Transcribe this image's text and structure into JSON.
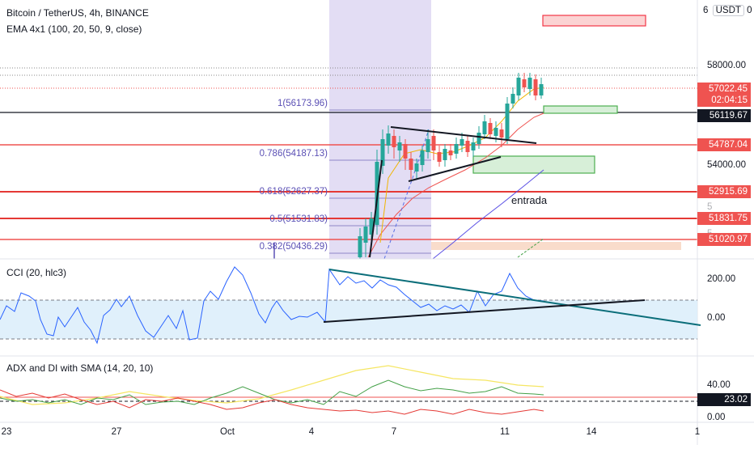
{
  "symbol_line": "Bitcoin / TetherUS, 4h, BINANCE",
  "ema_label": "EMA 4x1 (100, 20, 50, 9, close)",
  "cci_label": "CCI (20, hlc3)",
  "adx_label": "ADX and DI with SMA (14, 20, 10)",
  "currency_button": "USDT",
  "currency_prefix": "6",
  "currency_suffix": "0",
  "annotation": "entrada",
  "price_axis": {
    "ticks": [
      "58000.00",
      "54000.00"
    ],
    "partial_ticks": [
      "5",
      "5"
    ],
    "tags": [
      {
        "value": "57022.45",
        "sub": "02:04:15",
        "color": "#ef5350"
      },
      {
        "value": "56119.67",
        "color": "#131722"
      },
      {
        "value": "54787.04",
        "color": "#ef5350"
      },
      {
        "value": "52915.69",
        "color": "#ef5350"
      },
      {
        "value": "51831.75",
        "color": "#ef5350"
      },
      {
        "value": "51020.97",
        "color": "#ef5350"
      }
    ]
  },
  "fib_levels": [
    {
      "ratio": "1",
      "price": "56173.96"
    },
    {
      "ratio": "0.786",
      "price": "54187.13"
    },
    {
      "ratio": "0.618",
      "price": "52627.37"
    },
    {
      "ratio": "0.5",
      "price": "51531.83"
    },
    {
      "ratio": "0.382",
      "price": "50436.29"
    }
  ],
  "cci_axis": [
    "200.00",
    "0.00"
  ],
  "adx_axis": {
    "ticks": [
      "40.00",
      "0.00"
    ],
    "tag": "23.02"
  },
  "time_axis": [
    "23",
    "27",
    "Oct",
    "4",
    "7",
    "11",
    "14",
    "1"
  ],
  "colors": {
    "up": "#26a69a",
    "down": "#ef5350",
    "fib": "#5b50b5",
    "cci_line": "#2962ff",
    "cci_fill": "#ddeefb",
    "zone_green": "#4caf50",
    "zone_red": "#f23645",
    "highlight": "#d9d2f0"
  }
}
